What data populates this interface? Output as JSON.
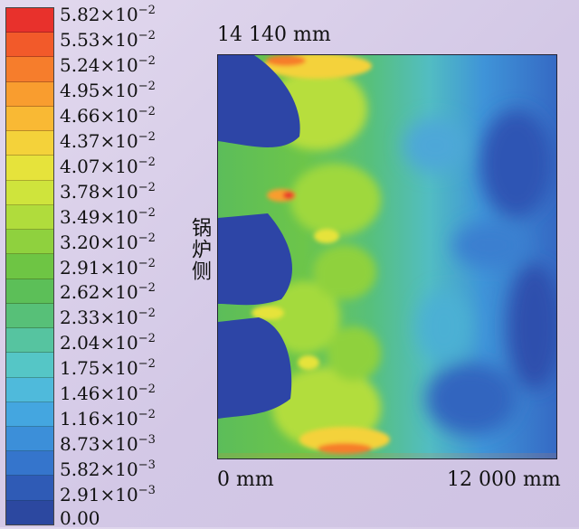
{
  "colorbar": {
    "ticks": [
      "5.82×10",
      "5.53×10",
      "5.24×10",
      "4.95×10",
      "4.66×10",
      "4.37×10",
      "4.07×10",
      "3.78×10",
      "3.49×10",
      "3.20×10",
      "2.91×10",
      "2.62×10",
      "2.33×10",
      "2.04×10",
      "1.75×10",
      "1.46×10",
      "1.16×10",
      "8.73×10",
      "5.82×10",
      "2.91×10",
      "0.00"
    ],
    "exponents": [
      "−2",
      "−2",
      "−2",
      "−2",
      "−2",
      "−2",
      "−2",
      "−2",
      "−2",
      "−2",
      "−2",
      "−2",
      "−2",
      "−2",
      "−2",
      "−2",
      "−2",
      "−3",
      "−3",
      "−3",
      ""
    ],
    "colors": [
      "#e8312c",
      "#f25a2a",
      "#f67d2c",
      "#f99d2f",
      "#f9b934",
      "#f4d23a",
      "#e6e33b",
      "#cfe43c",
      "#b0dc3c",
      "#8fd13e",
      "#6ec544",
      "#5cbf58",
      "#57c078",
      "#56c4a0",
      "#55c6c6",
      "#4fbadb",
      "#44a6e0",
      "#3c8fd9",
      "#3575cc",
      "#2f5bb6",
      "#2c48a0"
    ]
  },
  "labels": {
    "top": "14 140 mm",
    "bottom_left": "0 mm",
    "bottom_right": "12 000 mm",
    "side": "锅炉侧"
  }
}
